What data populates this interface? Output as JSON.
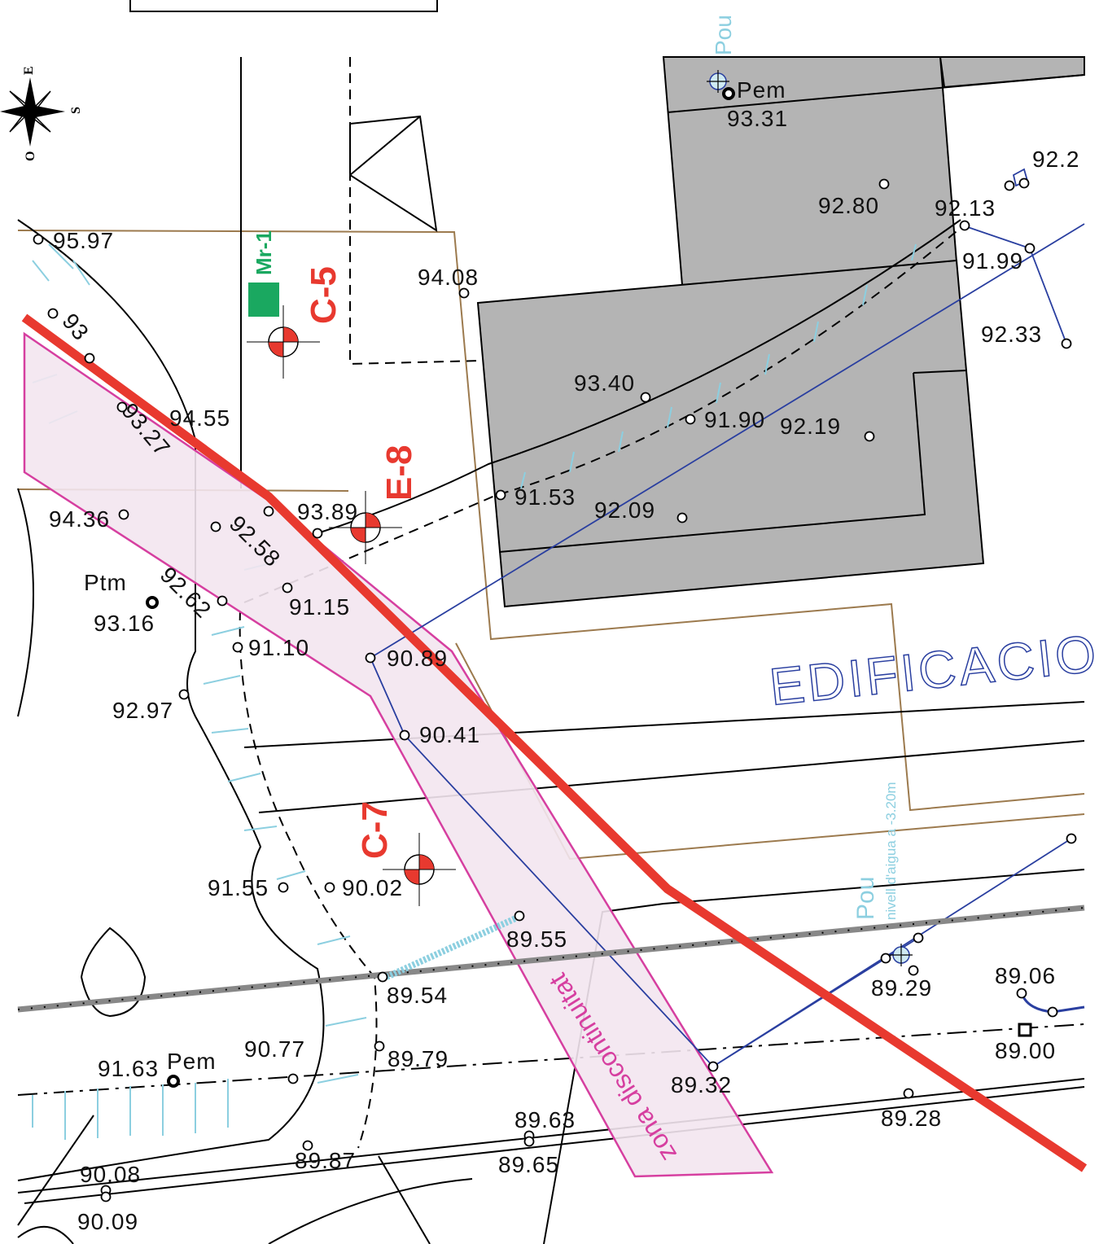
{
  "compass": [
    "E",
    "S",
    "O"
  ],
  "boreholes": [
    "Mr-1",
    "C-5",
    "E-8",
    "C-7"
  ],
  "elevations": [
    "95.97",
    "94.08",
    "93.31",
    "92.80",
    "92.13",
    "92.2",
    "91.99",
    "92.33",
    "93.40",
    "91.90",
    "92.19",
    "91.53",
    "92.09",
    "94.55",
    "93.89",
    "94.36",
    "91.15",
    "91.10",
    "90.89",
    "92.97",
    "90.41",
    "93.16",
    "91.55",
    "90.02",
    "89.55",
    "89.54",
    "89.79",
    "90.77",
    "91.63",
    "89.32",
    "89.63",
    "89.65",
    "89.87",
    "90.08",
    "90.09",
    "89.29",
    "89.06",
    "89.00",
    "89.28",
    "93",
    "93.27",
    "92.58",
    "92.62"
  ],
  "points": [
    "Pem",
    "Pem",
    "Ptm"
  ],
  "wells": {
    "top": "Pou",
    "bottom": "Pou",
    "note": "nivell d'aigua a -3.20m"
  },
  "building": "EDIFICACIO",
  "zone": "zona discontinuitat"
}
